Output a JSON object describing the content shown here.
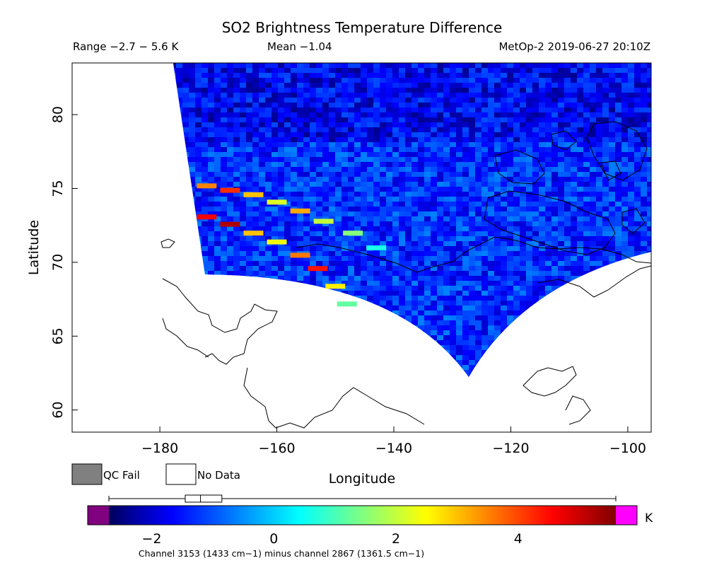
{
  "title": "SO2 Brightness Temperature Difference",
  "range_label": "Range −2.7 − 5.6 K",
  "mean_label": "Mean −1.04",
  "satellite_label": "MetOp-2 2019-06-27 20:10Z",
  "legend": {
    "qc_fail": "QC Fail",
    "no_data": "No Data",
    "qc_fail_color": "#808080",
    "no_data_color": "#ffffff"
  },
  "colorbar": {
    "unit": "K",
    "ticks": [
      "−2",
      "0",
      "2",
      "4"
    ],
    "tick_values": [
      -2,
      0,
      2,
      4
    ],
    "range": [
      -2.7,
      5.6
    ],
    "under_color": "#800080",
    "over_color": "#ff00ff",
    "caption": "Channel 3153 (1433 cm−1) minus channel 2867 (1361.5 cm−1)",
    "stops": [
      "#00005a",
      "#0000b4",
      "#0000ff",
      "#0040ff",
      "#0080ff",
      "#00c0ff",
      "#00ffff",
      "#40ffc0",
      "#80ff80",
      "#c0ff40",
      "#ffff00",
      "#ffc000",
      "#ff8000",
      "#ff4000",
      "#ff0000",
      "#c00000",
      "#800000"
    ]
  },
  "boxplot": {
    "min": -2.7,
    "q1": -1.45,
    "median": -1.2,
    "q3": -0.85,
    "max": 5.6
  },
  "chart_data": {
    "type": "heatmap",
    "title": "SO2 Brightness Temperature Difference",
    "xlabel": "Longitude",
    "ylabel": "Latitude",
    "xlim": [
      -195,
      -96
    ],
    "ylim": [
      58.5,
      83.5
    ],
    "x_ticks": [
      -180,
      -160,
      -140,
      -120,
      -100
    ],
    "y_ticks": [
      60,
      65,
      70,
      75,
      80
    ],
    "x_tick_labels": [
      "−180",
      "−160",
      "−140",
      "−120",
      "−100"
    ],
    "y_tick_labels": [
      "60",
      "65",
      "70",
      "75",
      "80"
    ],
    "value_range": [
      -2.7,
      5.6
    ],
    "mean": -1.04,
    "units": "K",
    "background_value": -1.3,
    "swath_corners": [
      [
        -174,
        83.5
      ],
      [
        -96,
        83.5
      ],
      [
        -96,
        70.5
      ],
      [
        -127.5,
        62.2
      ],
      [
        -173,
        69.2
      ]
    ],
    "plume": [
      {
        "lon": -172,
        "lat": 75.2,
        "value": 3.5
      },
      {
        "lon": -168,
        "lat": 74.9,
        "value": 4.2
      },
      {
        "lon": -164,
        "lat": 74.6,
        "value": 3.0
      },
      {
        "lon": -160,
        "lat": 74.1,
        "value": 2.2
      },
      {
        "lon": -156,
        "lat": 73.5,
        "value": 3.2
      },
      {
        "lon": -152,
        "lat": 72.8,
        "value": 2.0
      },
      {
        "lon": -147,
        "lat": 72.0,
        "value": 1.5
      },
      {
        "lon": -143,
        "lat": 71.0,
        "value": 0.6
      },
      {
        "lon": -172,
        "lat": 73.1,
        "value": 4.6
      },
      {
        "lon": -168,
        "lat": 72.6,
        "value": 5.2
      },
      {
        "lon": -164,
        "lat": 72.0,
        "value": 3.0
      },
      {
        "lon": -160,
        "lat": 71.4,
        "value": 2.4
      },
      {
        "lon": -156,
        "lat": 70.5,
        "value": 3.6
      },
      {
        "lon": -153,
        "lat": 69.6,
        "value": 4.4
      },
      {
        "lon": -150,
        "lat": 68.4,
        "value": 2.6
      },
      {
        "lon": -148,
        "lat": 67.2,
        "value": 1.2
      }
    ]
  }
}
